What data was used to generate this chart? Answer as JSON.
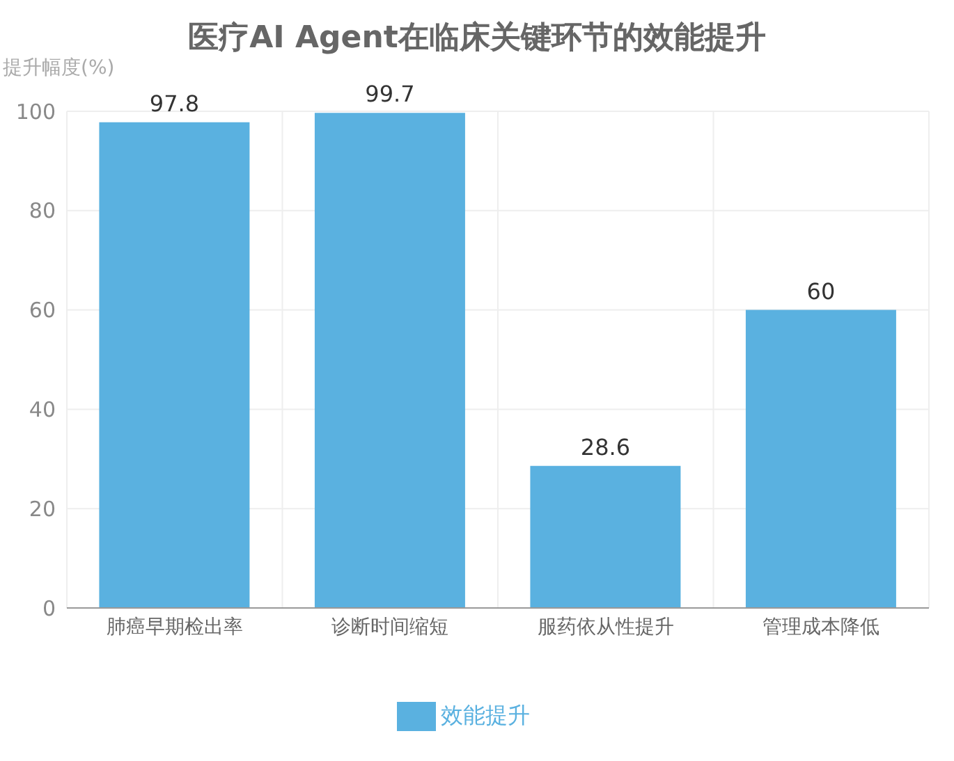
{
  "chart_data": {
    "type": "bar",
    "title": "医疗AI Agent在临床关键环节的效能提升",
    "ylabel": "提升幅度(%)",
    "categories": [
      "肺癌早期检出率",
      "诊断时间缩短",
      "服药依从性提升",
      "管理成本降低"
    ],
    "series": [
      {
        "name": "效能提升",
        "color": "#5ab1e0",
        "values": [
          97.8,
          99.7,
          28.6,
          60
        ]
      }
    ],
    "ylim": [
      0,
      100
    ],
    "yticks": [
      0,
      20,
      40,
      60,
      80,
      100
    ],
    "grid": true,
    "legend": "bottom",
    "data_labels": true
  }
}
